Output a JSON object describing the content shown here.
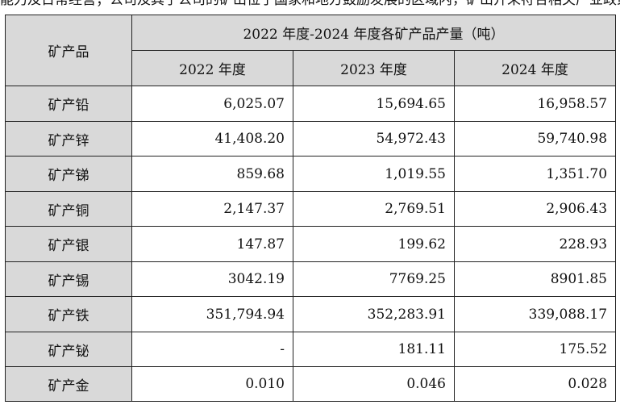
{
  "top_text": "能力及日常经营；公司及其子公司的矿山位于国家和地方鼓励发展的区域内，矿山开采符合相关产业政策及国家规划。",
  "table": {
    "corner": "矿产品",
    "span_header": "2022 年度-2024 年度各矿产品产量（吨）",
    "years": [
      "2022 年度",
      "2023 年度",
      "2024 年度"
    ],
    "rows": [
      {
        "name": "矿产铅",
        "values": [
          "6,025.07",
          "15,694.65",
          "16,958.57"
        ]
      },
      {
        "name": "矿产锌",
        "values": [
          "41,408.20",
          "54,972.43",
          "59,740.98"
        ]
      },
      {
        "name": "矿产锑",
        "values": [
          "859.68",
          "1,019.55",
          "1,351.70"
        ]
      },
      {
        "name": "矿产铜",
        "values": [
          "2,147.37",
          "2,769.51",
          "2,906.43"
        ]
      },
      {
        "name": "矿产银",
        "values": [
          "147.87",
          "199.62",
          "228.93"
        ]
      },
      {
        "name": "矿产锡",
        "values": [
          "3042.19",
          "7769.25",
          "8901.85"
        ]
      },
      {
        "name": "矿产铁",
        "values": [
          "351,794.94",
          "352,283.91",
          "339,088.17"
        ]
      },
      {
        "name": "矿产铋",
        "values": [
          "-",
          "181.11",
          "175.52"
        ]
      },
      {
        "name": "矿产金",
        "values": [
          "0.010",
          "0.046",
          "0.028"
        ]
      }
    ]
  }
}
